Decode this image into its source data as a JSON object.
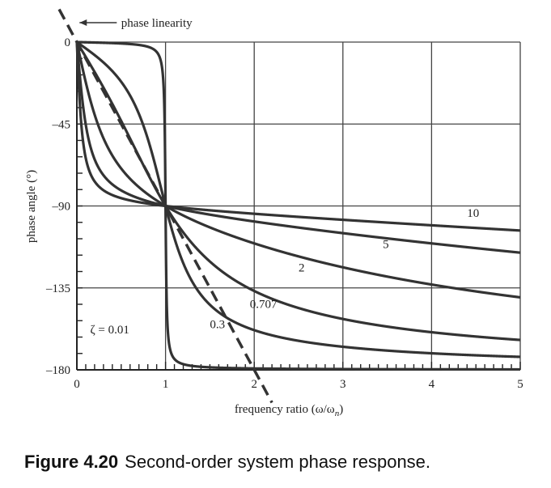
{
  "chart_data": {
    "type": "line",
    "title": "",
    "xlabel": "frequency ratio (ω/ω",
    "xlabel_subscript": "n",
    "xlabel_close": ")",
    "ylabel": "phase angle (°)",
    "xlim": [
      0,
      5
    ],
    "ylim": [
      -180,
      0
    ],
    "x_ticks": [
      0,
      1,
      2,
      3,
      4,
      5
    ],
    "x_tick_labels": [
      "0",
      "1",
      "2",
      "3",
      "4",
      "5"
    ],
    "y_ticks": [
      0,
      -45,
      -90,
      -135,
      -180
    ],
    "y_tick_labels": [
      "0",
      "–45",
      "–90",
      "–135",
      "–180"
    ],
    "grid": true,
    "series": [
      {
        "name": "ζ = 0.01",
        "zeta": 0.01,
        "label_x": 0.15,
        "label_y": -160
      },
      {
        "name": "0.3",
        "zeta": 0.3,
        "label_x": 1.5,
        "label_y": -157
      },
      {
        "name": "0.707",
        "zeta": 0.707,
        "label_x": 1.95,
        "label_y": -146
      },
      {
        "name": "2",
        "zeta": 2,
        "label_x": 2.5,
        "label_y": -126
      },
      {
        "name": "5",
        "zeta": 5,
        "label_x": 3.45,
        "label_y": -113
      },
      {
        "name": "10",
        "zeta": 10,
        "label_x": 4.4,
        "label_y": -96
      }
    ],
    "annotation": {
      "text": "phase linearity",
      "line_x": [
        -0.2,
        2.2
      ],
      "line_y": [
        18,
        -198
      ]
    }
  },
  "caption": {
    "figure_number": "Figure 4.20",
    "text": "Second-order system phase response."
  }
}
